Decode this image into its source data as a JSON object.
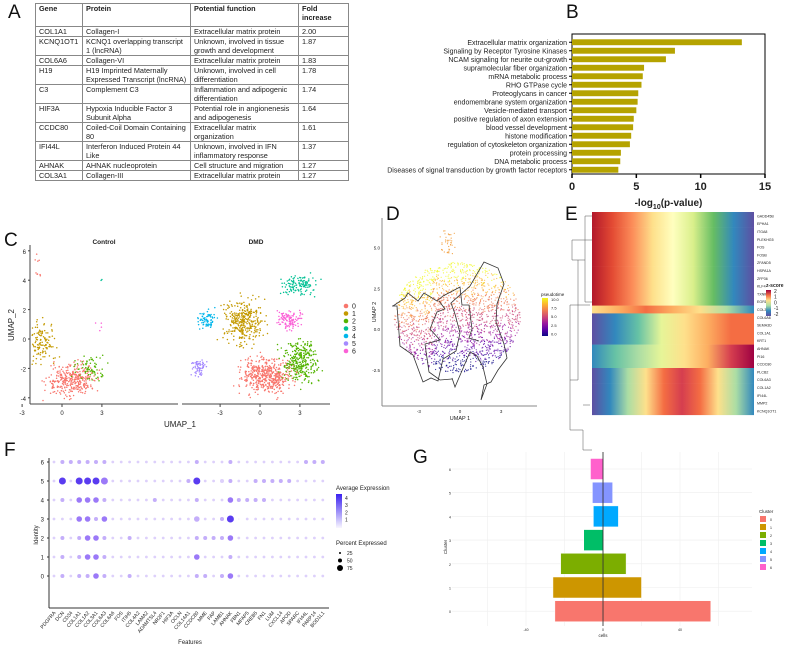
{
  "panel_labels": [
    "A",
    "B",
    "C",
    "D",
    "E",
    "F",
    "G"
  ],
  "table": {
    "headers": [
      "Gene",
      "Protein",
      "Potential function",
      "Fold increase"
    ],
    "rows": [
      [
        "COL1A1",
        "Collagen-I",
        "Extracellular matrix protein",
        "2.00"
      ],
      [
        "KCNQ1OT1",
        "KCNQ1 overlapping transcript 1 (lncRNA)",
        "Unknown, involved in tissue growth and development",
        "1.87"
      ],
      [
        "COL6A6",
        "Collagen-VI",
        "Extracellular matrix protein",
        "1.83"
      ],
      [
        "H19",
        "H19 Imprinted Maternally Expressed Transcript (lncRNA)",
        "Unknown, involved in cell differentiation",
        "1.78"
      ],
      [
        "C3",
        "Complement C3",
        "Inflammation and adipogenic differentiation",
        "1.74"
      ],
      [
        "HIF3A",
        "Hypoxia Inducible Factor 3 Subunit Alpha",
        "Potential role in angionenesis and adipogenesis",
        "1.64"
      ],
      [
        "CCDC80",
        "Coiled-Coil Domain Containing 80",
        "Extracellular matrix organization",
        "1.61"
      ],
      [
        "IFI44L",
        "Interferon Induced Protein 44 Like",
        "Unknown, involved in IFN inflammatory response",
        "1.37"
      ],
      [
        "AHNAK",
        "AHNAK nucleoprotein",
        "Cell structure and migration",
        "1.27"
      ],
      [
        "COL3A1",
        "Collagen-III",
        "Extracellular matrix protein",
        "1.27"
      ]
    ]
  },
  "chart_data": [
    {
      "id": "B",
      "type": "bar",
      "orientation": "horizontal",
      "categories": [
        "Extracellular matrix organization",
        "Signaling by Receptor Tyrosine Kinases",
        "NCAM signaling for neurite out-growth",
        "supramolecular fiber organization",
        "mRNA metabolic process",
        "RHO GTPase cycle",
        "Proteoglycans in cancer",
        "endomembrane system organization",
        "Vesicle-mediated transport",
        "positive regulation of axon extension",
        "blood vessel development",
        "histone modification",
        "regulation of cytoskeleton organization",
        "protein processing",
        "DNA metabolic process",
        "Diseases of signal transduction by growth factor receptors"
      ],
      "values": [
        13.2,
        8.0,
        7.3,
        5.6,
        5.5,
        5.4,
        5.15,
        5.1,
        5.0,
        4.8,
        4.75,
        4.6,
        4.5,
        3.8,
        3.75,
        3.6
      ],
      "xlabel": "-log10(p-value)",
      "xlabel_main": "-log",
      "xlabel_sub": "10",
      "xlabel_tail": "(p-value)",
      "xlim": [
        0,
        15
      ],
      "xticks": [
        "0",
        "5",
        "10",
        "15"
      ],
      "color": "#b5a300"
    },
    {
      "id": "C",
      "type": "scatter",
      "facets": [
        "Control",
        "DMD"
      ],
      "xlabel": "UMAP_1",
      "ylabel": "UMAP_2",
      "xticks": [
        "-3",
        "0",
        "3"
      ],
      "yticks": [
        "6",
        "4",
        "2",
        "0",
        "-2",
        "-4"
      ],
      "legend": [
        "0",
        "1",
        "2",
        "3",
        "4",
        "5",
        "6"
      ],
      "colors": [
        "#F8766D",
        "#C49A00",
        "#53B400",
        "#00C094",
        "#00B6EB",
        "#A58AFF",
        "#FB61D7"
      ]
    },
    {
      "id": "D",
      "type": "scatter",
      "xlabel": "UMAP 1",
      "ylabel": "UMAP 2",
      "xticks": [
        "-3",
        "0",
        "3"
      ],
      "yticks": [
        "5.0",
        "2.5",
        "0.0",
        "-2.5"
      ],
      "legend_title": "pseudotime",
      "legend_ticks": [
        "10.0",
        "7.5",
        "5.0",
        "2.5",
        "0.0"
      ]
    },
    {
      "id": "E",
      "type": "heatmap",
      "legend_title": "z-score",
      "legend_ticks": [
        "2",
        "1",
        "0",
        "-1",
        "-2"
      ],
      "rows": [
        {
          "gene": "GADD45B",
          "trend": "early"
        },
        {
          "gene": "EPHA1",
          "trend": "early"
        },
        {
          "gene": "ITGA8",
          "trend": "early"
        },
        {
          "gene": "PLEKHG5",
          "trend": "early"
        },
        {
          "gene": "FOS",
          "trend": "early"
        },
        {
          "gene": "FOSB",
          "trend": "early"
        },
        {
          "gene": "ZFAND5",
          "trend": "early"
        },
        {
          "gene": "HSPA1A",
          "trend": "early"
        },
        {
          "gene": "ZFP36",
          "trend": "early"
        },
        {
          "gene": "KLF4",
          "trend": "early"
        },
        {
          "gene": "TXNIP",
          "trend": "early"
        },
        {
          "gene": "EGR1",
          "trend": "early"
        },
        {
          "gene": "COL3A1",
          "trend": "flat"
        },
        {
          "gene": "COL6A6",
          "trend": "late"
        },
        {
          "gene": "SEMA3D",
          "trend": "late"
        },
        {
          "gene": "COL1A1",
          "trend": "late"
        },
        {
          "gene": "KRT1",
          "trend": "late"
        },
        {
          "gene": "AHNAK",
          "trend": "end"
        },
        {
          "gene": "PI16",
          "trend": "end"
        },
        {
          "gene": "CCDC80",
          "trend": "end"
        },
        {
          "gene": "PLCB2",
          "trend": "mid"
        },
        {
          "gene": "COL6A3",
          "trend": "mid"
        },
        {
          "gene": "COL1A2",
          "trend": "mid"
        },
        {
          "gene": "IFI44L",
          "trend": "mid"
        },
        {
          "gene": "MMP2",
          "trend": "mid"
        },
        {
          "gene": "KCNQ1OT1",
          "trend": "mid"
        }
      ]
    },
    {
      "id": "F",
      "type": "dot",
      "xlabel": "Features",
      "ylabel": "Identity",
      "features": [
        "PDGFRA",
        "DCN",
        "CD34",
        "COL1A1",
        "COL1A2",
        "COL3A1",
        "COL6A3",
        "COL6A6",
        "FOS",
        "ITIH5",
        "COL4A2",
        "LAMA2",
        "ADAMTSL4",
        "NR2F1",
        "HIF3A",
        "OCLN",
        "COL14A1",
        "CCDC80",
        "MME",
        "FAP",
        "LAMB1",
        "AHNAK",
        "FBN1",
        "MFAP5",
        "CREB5",
        "FN1",
        "LUM",
        "CXCL14",
        "APOD",
        "SPARC",
        "IFI44L",
        "PARP14",
        "BOD1L1"
      ],
      "identities": [
        "6",
        "5",
        "4",
        "3",
        "2",
        "1",
        "0"
      ],
      "pct": [
        "122222211111111112111211111111222",
        "141444411111111124112211222221111",
        "121333211111211112111322221111111",
        "111332311111111113112401111111111",
        "121233211211111112222311111111111",
        "121233211111111113111211111111111",
        "121223211211111112212311111111111"
      ],
      "expr": [
        "122222211111111112111211111111222",
        "141444311111111124111211222221111",
        "121333211111211112111322221111111",
        "111332311111111112112401111111111",
        "121233211211111112222311111111111",
        "121233211111111113111211111111111",
        "121223211211111112212311111111111"
      ],
      "legend_expr_title": "Average Expression",
      "legend_expr_ticks": [
        "4",
        "3",
        "2",
        "1"
      ],
      "legend_pct_title": "Percent Expressed",
      "legend_pct_ticks": [
        "25",
        "50",
        "75"
      ]
    },
    {
      "id": "G",
      "type": "bar",
      "orientation": "horizontal",
      "categories": [
        "0",
        "1",
        "2",
        "3",
        "4",
        "5",
        "6"
      ],
      "negative": [
        -25,
        -26,
        -22,
        -10,
        -5,
        -5.5,
        -6.5
      ],
      "positive": [
        56,
        20,
        12,
        0,
        8,
        5,
        0
      ],
      "xlabel": "cells",
      "ylabel": "Cluster",
      "xticks": [
        "-40",
        "0",
        "40"
      ],
      "xlim": [
        -65,
        78
      ],
      "legend_title": "Cluster",
      "colors": [
        "#F8766D",
        "#CD9600",
        "#7CAE00",
        "#00BE67",
        "#00A9FF",
        "#8494FF",
        "#FF61CC"
      ]
    }
  ]
}
